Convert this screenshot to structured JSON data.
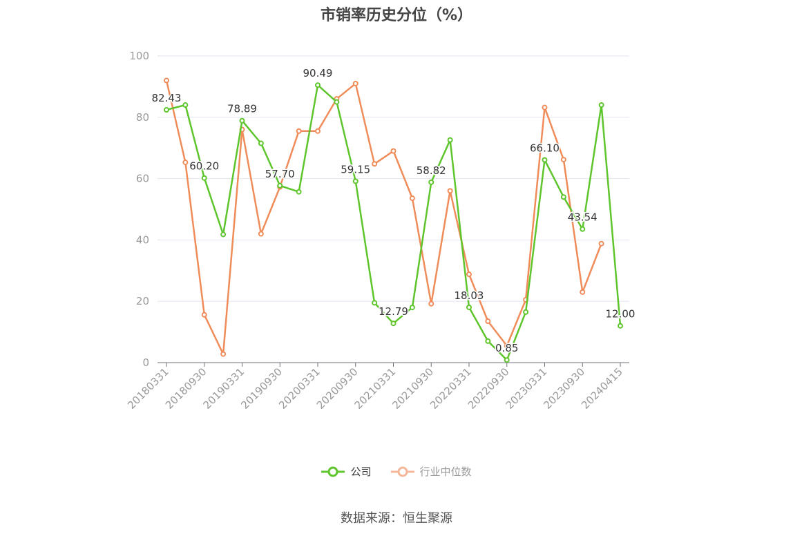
{
  "chart_data": {
    "type": "line",
    "title": "市销率历史分位（%）",
    "ylim": [
      0,
      100
    ],
    "yticks": [
      0,
      20,
      40,
      60,
      80,
      100
    ],
    "x_tick_labels": [
      "20180331",
      "20180930",
      "20190331",
      "20190930",
      "20200331",
      "20200930",
      "20210331",
      "20210930",
      "20220331",
      "20220930",
      "20230331",
      "20230930",
      "20240415"
    ],
    "x": [
      "20180331",
      "20180630",
      "20180930",
      "20181231",
      "20190331",
      "20190630",
      "20190930",
      "20191231",
      "20200331",
      "20200630",
      "20200930",
      "20201231",
      "20210331",
      "20210630",
      "20210930",
      "20211231",
      "20220331",
      "20220630",
      "20220930",
      "20221231",
      "20230331",
      "20230630",
      "20230930",
      "20231231",
      "20240415"
    ],
    "series": [
      {
        "name": "公司",
        "color": "#5ec52c",
        "values": [
          82.43,
          84.0,
          60.2,
          41.8,
          78.89,
          71.5,
          57.7,
          55.7,
          90.49,
          85.0,
          59.15,
          19.5,
          12.79,
          18.0,
          58.82,
          72.6,
          18.03,
          7.0,
          0.85,
          16.5,
          66.1,
          54.0,
          43.54,
          84.0,
          12.0
        ],
        "labels": {
          "0": "82.43",
          "2": "60.20",
          "4": "78.89",
          "6": "57.70",
          "8": "90.49",
          "10": "59.15",
          "12": "12.79",
          "14": "58.82",
          "16": "18.03",
          "18": "0.85",
          "20": "66.10",
          "22": "43.54",
          "24": "12.00"
        }
      },
      {
        "name": "行业中位数",
        "color": "#f08c5a",
        "values": [
          92.0,
          65.3,
          15.6,
          2.8,
          76.0,
          42.0,
          57.3,
          75.5,
          75.5,
          86.0,
          91.0,
          64.8,
          69.0,
          53.6,
          19.2,
          56.0,
          28.8,
          13.5,
          5.5,
          20.5,
          83.2,
          66.2,
          23.0,
          38.8,
          null
        ]
      }
    ],
    "legend_position": "bottom",
    "grid": true
  },
  "legend": [
    {
      "label": "公司",
      "color": "#5ec52c",
      "active": true
    },
    {
      "label": "行业中位数",
      "color": "#f5b79a",
      "active": false
    }
  ],
  "source": "数据来源：恒生聚源"
}
